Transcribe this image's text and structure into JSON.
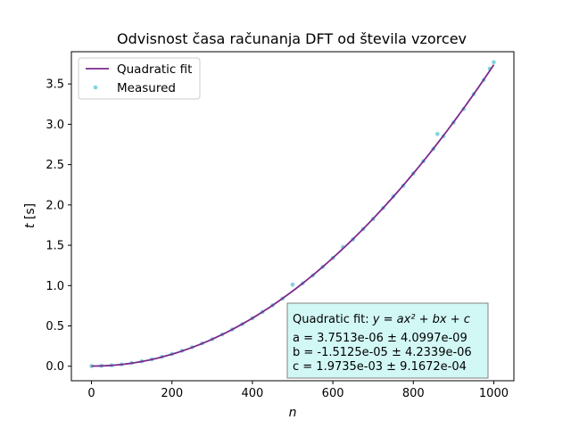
{
  "chart_data": {
    "type": "scatter",
    "title": "Odvisnost časa računanja DFT od števila vzorcev",
    "xlabel": "n",
    "ylabel": "t [s]",
    "xlim": [
      -50,
      1050
    ],
    "ylim": [
      -0.18,
      3.9
    ],
    "xticks": [
      0,
      200,
      400,
      600,
      800,
      1000
    ],
    "xtick_labels": [
      "0",
      "200",
      "400",
      "600",
      "800",
      "1000"
    ],
    "yticks": [
      0.0,
      0.5,
      1.0,
      1.5,
      2.0,
      2.5,
      3.0,
      3.5
    ],
    "ytick_labels": [
      "0.0",
      "0.5",
      "1.0",
      "1.5",
      "2.0",
      "2.5",
      "3.0",
      "3.5"
    ],
    "grid": false,
    "legend_position": "top-left",
    "series": [
      {
        "name": "Quadratic fit",
        "kind": "line",
        "color": "#7b2a8c",
        "model": "quadratic",
        "coefficients": {
          "a": 3.7513e-06,
          "b": -1.5125e-05,
          "c": 0.0019735
        },
        "x_range": [
          0,
          1000
        ]
      },
      {
        "name": "Measured",
        "kind": "scatter",
        "color": "#7fd3e0",
        "x": [
          0,
          25,
          50,
          75,
          100,
          125,
          150,
          175,
          200,
          225,
          250,
          275,
          300,
          325,
          350,
          375,
          400,
          425,
          450,
          475,
          500,
          525,
          550,
          575,
          600,
          625,
          650,
          675,
          700,
          725,
          750,
          775,
          800,
          825,
          850,
          860,
          875,
          900,
          925,
          950,
          975,
          990,
          1000
        ],
        "y": [
          0.002,
          0.005,
          0.011,
          0.023,
          0.04,
          0.061,
          0.085,
          0.117,
          0.152,
          0.192,
          0.236,
          0.283,
          0.335,
          0.395,
          0.456,
          0.522,
          0.596,
          0.672,
          0.755,
          0.84,
          1.012,
          1.027,
          1.125,
          1.232,
          1.342,
          1.479,
          1.573,
          1.7,
          1.826,
          1.962,
          2.106,
          2.238,
          2.39,
          2.542,
          2.696,
          2.88,
          2.852,
          3.022,
          3.19,
          3.375,
          3.55,
          3.69,
          3.77
        ]
      }
    ],
    "annotation": {
      "heading_prefix": "Quadratic fit: ",
      "heading_formula": "y = ax² + bx + c",
      "lines": [
        "a = 3.7513e-06 ± 4.0997e-09",
        "b = -1.5125e-05 ± 4.2339e-06",
        "c = 1.9735e-03 ± 9.1672e-04"
      ],
      "background": "#d2f8f6"
    }
  }
}
